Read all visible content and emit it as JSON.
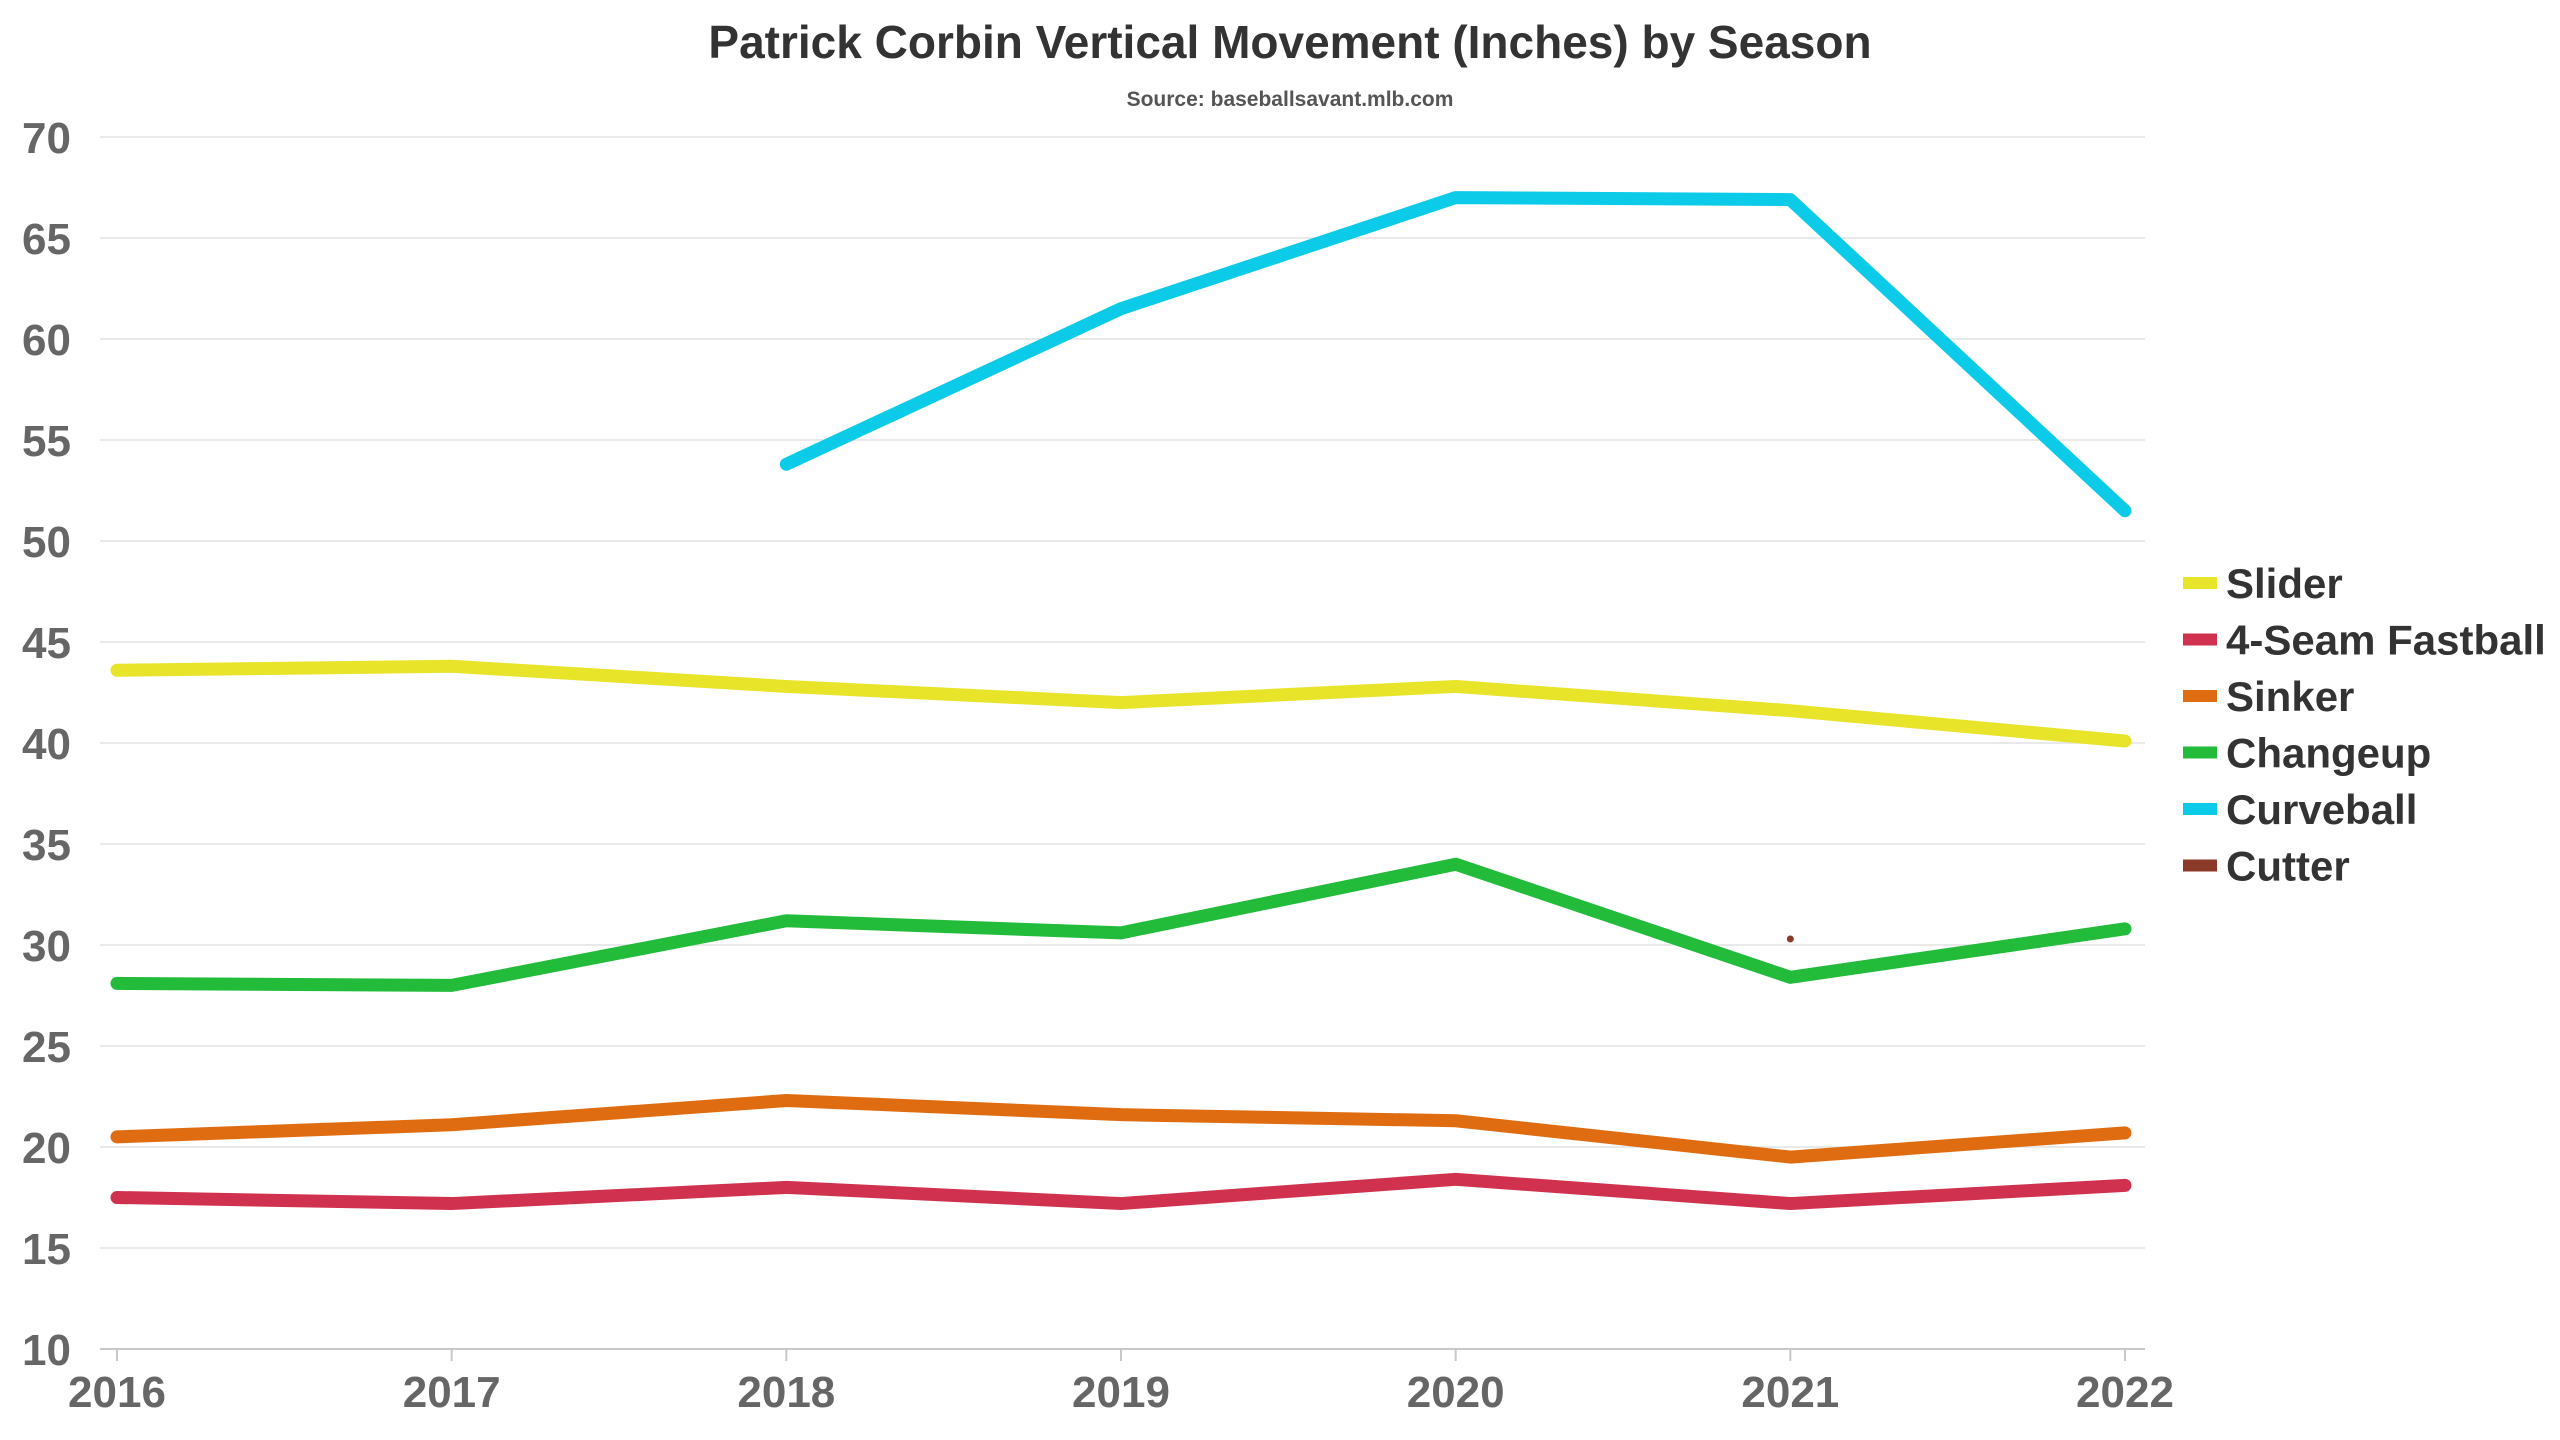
{
  "chart_data": {
    "type": "line",
    "title": "Patrick Corbin Vertical Movement (Inches) by Season",
    "subtitle": "Source: baseballsavant.mlb.com",
    "xlabel": "",
    "ylabel": "",
    "x": [
      "2016",
      "2017",
      "2018",
      "2019",
      "2020",
      "2021",
      "2022"
    ],
    "ylim": [
      10,
      70
    ],
    "yticks": [
      10,
      15,
      20,
      25,
      30,
      35,
      40,
      45,
      50,
      55,
      60,
      65,
      70
    ],
    "grid": "horizontal",
    "legend_position": "right",
    "series": [
      {
        "name": "Slider",
        "color": "#e8e42a",
        "values": [
          43.6,
          43.8,
          42.8,
          42.0,
          42.8,
          41.6,
          40.1
        ]
      },
      {
        "name": "4-Seam Fastball",
        "color": "#d0314f",
        "values": [
          17.5,
          17.2,
          18.0,
          17.2,
          18.4,
          17.2,
          18.1
        ]
      },
      {
        "name": "Sinker",
        "color": "#e06c12",
        "values": [
          20.5,
          21.1,
          22.3,
          21.6,
          21.3,
          19.5,
          20.7
        ]
      },
      {
        "name": "Changeup",
        "color": "#22bb3a",
        "values": [
          28.1,
          28.0,
          31.2,
          30.6,
          34.0,
          28.4,
          30.8
        ]
      },
      {
        "name": "Curveball",
        "color": "#0ccbe8",
        "values": [
          null,
          null,
          53.8,
          61.5,
          67.0,
          66.9,
          51.5
        ]
      },
      {
        "name": "Cutter",
        "color": "#8b3a2a",
        "values": [
          null,
          null,
          null,
          null,
          null,
          30.3,
          null
        ]
      }
    ]
  }
}
